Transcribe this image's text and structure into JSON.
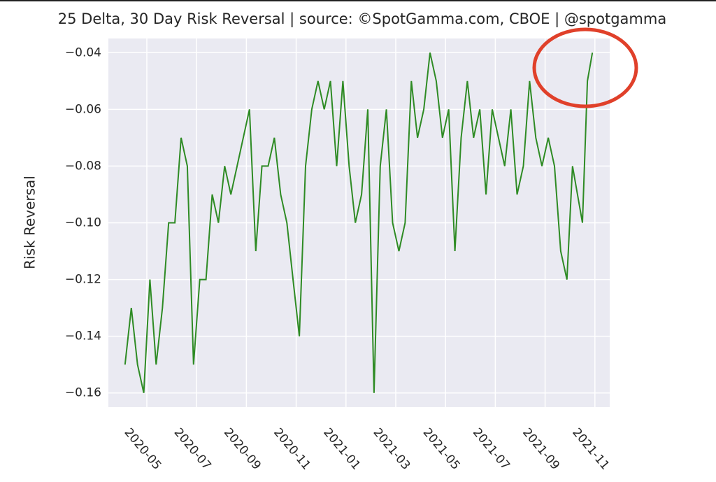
{
  "chart_data": {
    "type": "line",
    "title": "25 Delta, 30 Day Risk Reversal | source: ©SpotGamma.com, CBOE | @spotgamma",
    "y_label": "Risk Reversal",
    "x": [
      "2020-04",
      "2020-04",
      "2020-04",
      "2020-04",
      "2020-05",
      "2020-05",
      "2020-05",
      "2020-05",
      "2020-06",
      "2020-06",
      "2020-06",
      "2020-06",
      "2020-07",
      "2020-07",
      "2020-07",
      "2020-07",
      "2020-08",
      "2020-08",
      "2020-08",
      "2020-08",
      "2020-09",
      "2020-09",
      "2020-09",
      "2020-09",
      "2020-10",
      "2020-10",
      "2020-10",
      "2020-10",
      "2020-11",
      "2020-11",
      "2020-11",
      "2020-11",
      "2020-12",
      "2020-12",
      "2020-12",
      "2020-12",
      "2021-01",
      "2021-01",
      "2021-01",
      "2021-01",
      "2021-02",
      "2021-02",
      "2021-02",
      "2021-02",
      "2021-03",
      "2021-03",
      "2021-03",
      "2021-03",
      "2021-04",
      "2021-04",
      "2021-04",
      "2021-04",
      "2021-05",
      "2021-05",
      "2021-05",
      "2021-05",
      "2021-06",
      "2021-06",
      "2021-06",
      "2021-06",
      "2021-07",
      "2021-07",
      "2021-07",
      "2021-07",
      "2021-08",
      "2021-08",
      "2021-08",
      "2021-08",
      "2021-09",
      "2021-09",
      "2021-09",
      "2021-09",
      "2021-10",
      "2021-10",
      "2021-10",
      "2021-10",
      "2021-10"
    ],
    "series": [
      {
        "name": "Risk Reversal",
        "color": "#2e8b24",
        "values": [
          -0.15,
          -0.13,
          -0.15,
          -0.16,
          -0.12,
          -0.15,
          -0.13,
          -0.1,
          -0.1,
          -0.07,
          -0.08,
          -0.15,
          -0.12,
          -0.12,
          -0.09,
          -0.1,
          -0.08,
          -0.09,
          -0.08,
          -0.07,
          -0.06,
          -0.11,
          -0.08,
          -0.08,
          -0.07,
          -0.09,
          -0.1,
          -0.12,
          -0.14,
          -0.08,
          -0.06,
          -0.05,
          -0.06,
          -0.05,
          -0.08,
          -0.05,
          -0.08,
          -0.1,
          -0.09,
          -0.06,
          -0.16,
          -0.08,
          -0.06,
          -0.1,
          -0.11,
          -0.1,
          -0.05,
          -0.07,
          -0.06,
          -0.04,
          -0.05,
          -0.07,
          -0.06,
          -0.11,
          -0.07,
          -0.05,
          -0.07,
          -0.06,
          -0.09,
          -0.06,
          -0.07,
          -0.08,
          -0.06,
          -0.09,
          -0.08,
          -0.05,
          -0.07,
          -0.08,
          -0.07,
          -0.08,
          -0.11,
          -0.12,
          -0.08,
          -0.09,
          -0.1,
          -0.05,
          -0.04
        ]
      }
    ],
    "xlim": [
      "2020-04",
      "2021-11"
    ],
    "xticks": [
      "2020-05",
      "2020-07",
      "2020-09",
      "2020-11",
      "2021-01",
      "2021-03",
      "2021-05",
      "2021-07",
      "2021-09",
      "2021-11"
    ],
    "ylim": [
      -0.165,
      -0.035
    ],
    "yticks": [
      {
        "value": -0.16,
        "label": "−0.16"
      },
      {
        "value": -0.14,
        "label": "−0.14"
      },
      {
        "value": -0.12,
        "label": "−0.12"
      },
      {
        "value": -0.1,
        "label": "−0.10"
      },
      {
        "value": -0.08,
        "label": "−0.08"
      },
      {
        "value": -0.06,
        "label": "−0.06"
      },
      {
        "value": -0.04,
        "label": "−0.04"
      }
    ],
    "grid": true
  }
}
